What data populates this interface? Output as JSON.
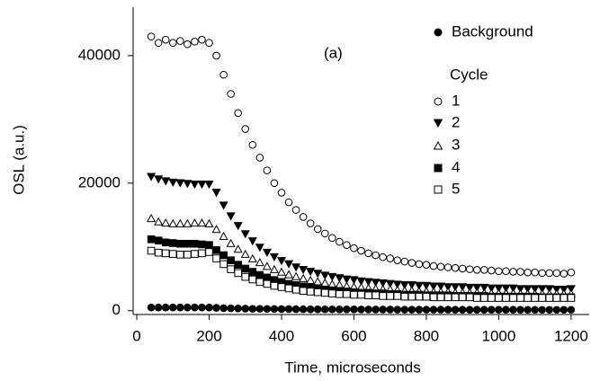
{
  "chart_data": {
    "type": "scatter",
    "xlabel": "Time, microseconds",
    "ylabel": "OSL (a.u.)",
    "annotation": "(a)",
    "legend_title": "Cycle",
    "xlim": [
      -10,
      1250
    ],
    "xticks": [
      0,
      200,
      400,
      600,
      800,
      1000,
      1200
    ],
    "ylim": [
      -600,
      47600
    ],
    "yticks": [
      0,
      20000,
      40000
    ],
    "x": [
      40,
      60,
      80,
      100,
      120,
      140,
      160,
      180,
      200,
      220,
      240,
      260,
      280,
      300,
      320,
      340,
      360,
      380,
      400,
      420,
      440,
      460,
      480,
      500,
      520,
      540,
      560,
      580,
      600,
      620,
      640,
      660,
      680,
      700,
      720,
      740,
      760,
      780,
      800,
      820,
      840,
      860,
      880,
      900,
      920,
      940,
      960,
      980,
      1000,
      1020,
      1040,
      1060,
      1080,
      1100,
      1120,
      1140,
      1160,
      1180,
      1200
    ],
    "series": [
      {
        "name": "Background",
        "color": "#000000",
        "marker": "circle",
        "filled": true,
        "values": [
          500,
          500,
          500,
          500,
          500,
          500,
          500,
          500,
          500,
          450,
          400,
          380,
          350,
          330,
          300,
          300,
          280,
          270,
          260,
          250,
          240,
          230,
          220,
          220,
          210,
          210,
          200,
          200,
          200,
          190,
          190,
          180,
          180,
          180,
          170,
          170,
          170,
          170,
          160,
          160,
          160,
          160,
          150,
          150,
          150,
          150,
          150,
          150,
          150,
          150,
          150,
          150,
          140,
          140,
          140,
          140,
          140,
          140,
          140
        ]
      },
      {
        "name": "1",
        "color": "#000000",
        "marker": "circle",
        "filled": false,
        "values": [
          43000,
          42000,
          42500,
          42000,
          42300,
          41800,
          42200,
          42500,
          42000,
          40000,
          37000,
          34000,
          31000,
          28500,
          26000,
          24000,
          22000,
          20000,
          18500,
          17000,
          15800,
          14700,
          13700,
          12800,
          12100,
          11400,
          10800,
          10300,
          9800,
          9400,
          9000,
          8700,
          8400,
          8200,
          7900,
          7700,
          7500,
          7300,
          7200,
          7000,
          6900,
          6800,
          6700,
          6600,
          6500,
          6400,
          6400,
          6300,
          6200,
          6200,
          6100,
          6100,
          6000,
          6000,
          5900,
          5900,
          5900,
          5800,
          6000
        ]
      },
      {
        "name": "2",
        "color": "#000000",
        "marker": "triangle-down",
        "filled": true,
        "values": [
          21000,
          20600,
          20300,
          20100,
          20000,
          19900,
          19800,
          19800,
          19800,
          18500,
          16500,
          14800,
          13300,
          12000,
          10900,
          9900,
          9100,
          8400,
          7800,
          7300,
          6800,
          6400,
          6100,
          5800,
          5500,
          5300,
          5100,
          4900,
          4800,
          4600,
          4500,
          4400,
          4300,
          4200,
          4100,
          4000,
          4000,
          3900,
          3900,
          3800,
          3800,
          3700,
          3700,
          3700,
          3600,
          3600,
          3600,
          3500,
          3500,
          3500,
          3500,
          3400,
          3400,
          3400,
          3400,
          3400,
          3300,
          3300,
          3400
        ]
      },
      {
        "name": "3",
        "color": "#000000",
        "marker": "triangle-up",
        "filled": false,
        "values": [
          14500,
          14000,
          13800,
          13700,
          13700,
          13700,
          13800,
          13800,
          13700,
          12800,
          11700,
          10600,
          9700,
          8900,
          8200,
          7600,
          7000,
          6500,
          6100,
          5700,
          5400,
          5100,
          4800,
          4600,
          4400,
          4200,
          4100,
          3900,
          3800,
          3700,
          3600,
          3500,
          3400,
          3400,
          3300,
          3200,
          3200,
          3100,
          3100,
          3000,
          3000,
          3000,
          2900,
          2900,
          2900,
          2900,
          2800,
          2800,
          2800,
          2800,
          2800,
          2700,
          2700,
          2700,
          2700,
          2700,
          2700,
          2700,
          2700
        ]
      },
      {
        "name": "4",
        "color": "#000000",
        "marker": "square",
        "filled": true,
        "values": [
          11200,
          11000,
          10700,
          10600,
          10500,
          10500,
          10500,
          10400,
          10300,
          9500,
          8700,
          7900,
          7200,
          6600,
          6100,
          5600,
          5200,
          4800,
          4500,
          4200,
          4000,
          3800,
          3600,
          3400,
          3300,
          3200,
          3100,
          3000,
          2900,
          2800,
          2800,
          2700,
          2700,
          2600,
          2600,
          2500,
          2500,
          2500,
          2400,
          2400,
          2400,
          2400,
          2300,
          2300,
          2300,
          2300,
          2300,
          2200,
          2200,
          2200,
          2200,
          2200,
          2200,
          2200,
          2100,
          2100,
          2100,
          2100,
          2100
        ]
      },
      {
        "name": "5",
        "color": "#000000",
        "marker": "square",
        "filled": false,
        "values": [
          9400,
          9100,
          9000,
          8900,
          8800,
          8800,
          8900,
          9000,
          9200,
          8200,
          7300,
          6500,
          5900,
          5300,
          4900,
          4500,
          4200,
          3900,
          3700,
          3500,
          3300,
          3100,
          3000,
          2900,
          2800,
          2700,
          2600,
          2600,
          2500,
          2500,
          2400,
          2400,
          2300,
          2300,
          2300,
          2200,
          2200,
          2200,
          2200,
          2100,
          2100,
          2100,
          2100,
          2100,
          2100,
          2000,
          2000,
          2000,
          2000,
          2000,
          2000,
          2000,
          2000,
          2000,
          2000,
          2000,
          2000,
          2000,
          2000
        ]
      }
    ]
  }
}
